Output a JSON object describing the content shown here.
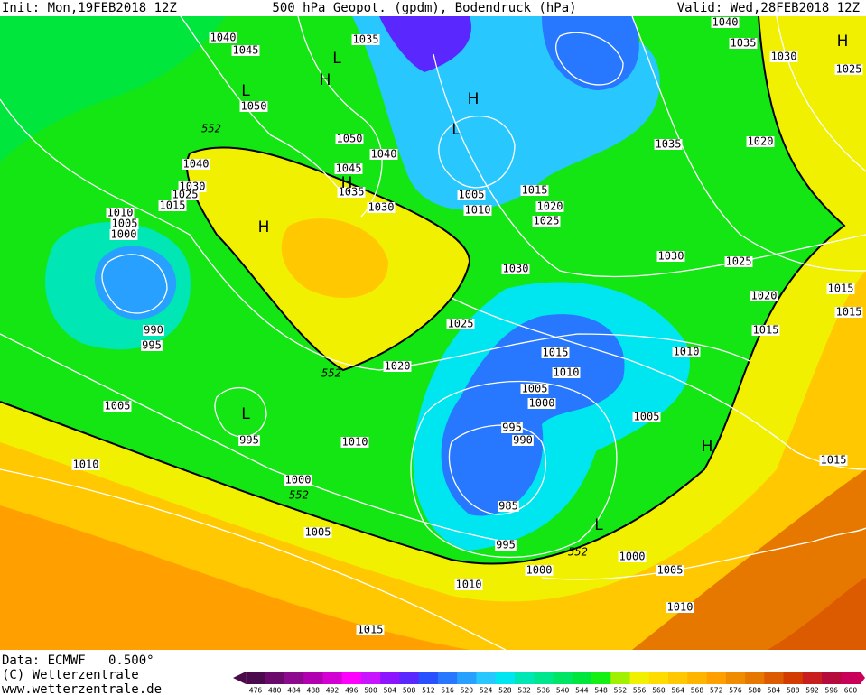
{
  "header": {
    "init": "Init: Mon,19FEB2018 12Z",
    "title": "500 hPa Geopot. (gpdm), Bodendruck (hPa)",
    "valid": "Valid: Wed,28FEB2018 12Z"
  },
  "footer": {
    "data": "Data: ECMWF   0.500°",
    "copyright": "(C) Wetterzentrale",
    "url": "www.wetterzentrale.de"
  },
  "map": {
    "isobar_labels": [
      "1040",
      "1045",
      "1035",
      "1040",
      "1035",
      "1030",
      "1025",
      "1050",
      "1050",
      "1040",
      "1045",
      "1035",
      "1040",
      "1030",
      "1025",
      "1015",
      "1010",
      "1005",
      "1000",
      "1005",
      "1010",
      "1015",
      "1020",
      "1025",
      "1030",
      "1030",
      "1035",
      "1020",
      "1030",
      "1025",
      "1020",
      "1015",
      "1015",
      "1015",
      "1025",
      "1020",
      "1015",
      "1010",
      "1010",
      "1005",
      "1000",
      "1005",
      "995",
      "990",
      "990",
      "995",
      "1005",
      "995",
      "1010",
      "1010",
      "1000",
      "1015",
      "985",
      "1005",
      "995",
      "1000",
      "1000",
      "1005",
      "1010",
      "1010",
      "1015"
    ],
    "contour_labels": [
      "552",
      "552",
      "552",
      "552"
    ],
    "pressure_centers": [
      "L",
      "L",
      "L",
      "L",
      "L",
      "H",
      "H",
      "H",
      "H",
      "H",
      "H"
    ]
  },
  "colorbar": {
    "values": [
      476,
      480,
      484,
      488,
      492,
      496,
      500,
      504,
      508,
      512,
      516,
      520,
      524,
      528,
      532,
      536,
      540,
      544,
      548,
      552,
      556,
      560,
      564,
      568,
      572,
      576,
      580,
      584,
      588,
      592,
      596,
      600
    ],
    "colors": [
      "#4b0a4b",
      "#6a0a6a",
      "#8c0a8c",
      "#b000b0",
      "#d200d2",
      "#ff00ff",
      "#c814ff",
      "#8c14ff",
      "#5a28ff",
      "#2850ff",
      "#2878ff",
      "#28a0ff",
      "#28c8ff",
      "#00e6f0",
      "#00e6b4",
      "#00e68c",
      "#00e664",
      "#00e63c",
      "#14f014",
      "#a0f000",
      "#f0f000",
      "#ffdc00",
      "#ffc800",
      "#ffb400",
      "#ffa000",
      "#f08c00",
      "#e67800",
      "#dc5a00",
      "#d23c00",
      "#c81e1e",
      "#b40a3c",
      "#c8005a"
    ]
  }
}
